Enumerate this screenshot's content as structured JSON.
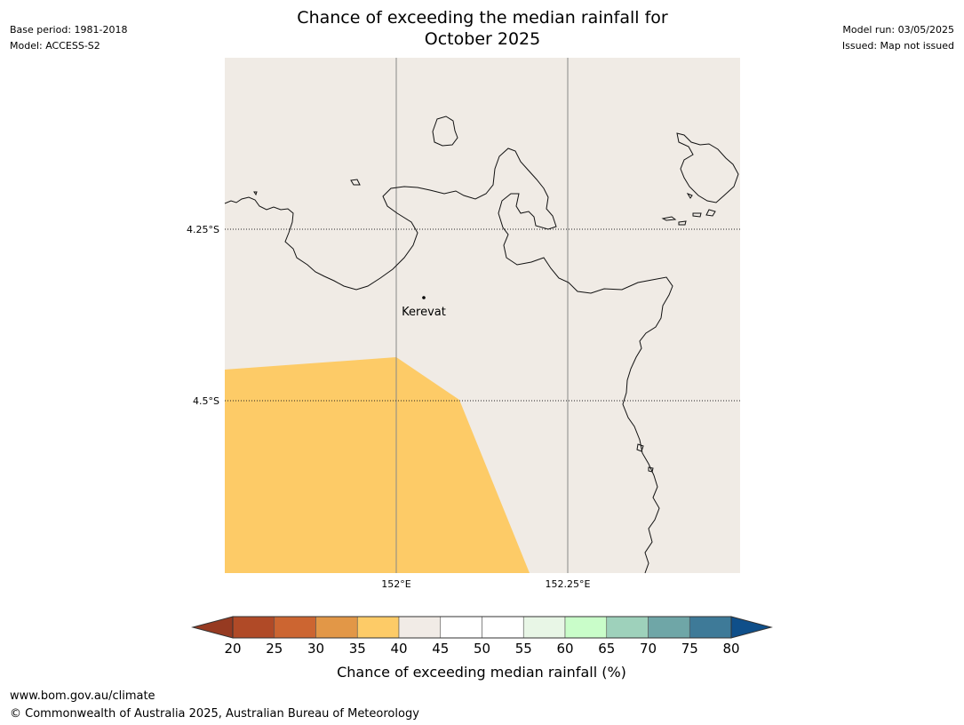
{
  "header": {
    "title_line1": "Chance of exceeding the median rainfall for",
    "title_line2": "October 2025",
    "base_period": "Base period: 1981-2018",
    "model": "Model: ACCESS-S2",
    "model_run": "Model run: 03/05/2025",
    "issued": "Issued: Map not issued"
  },
  "map": {
    "background_color": "#f0ebe5",
    "lat_labels": [
      "4.25°S",
      "4.5°S"
    ],
    "lon_labels": [
      "152°E",
      "152.25°E"
    ],
    "place": {
      "name": "Kerevat"
    },
    "region_35_40_color": "#fdcb67"
  },
  "colorbar": {
    "label": "Chance of exceeding median rainfall (%)",
    "ticks": [
      "20",
      "25",
      "30",
      "35",
      "40",
      "45",
      "50",
      "55",
      "60",
      "65",
      "70",
      "75",
      "80"
    ],
    "colors": [
      "#b04a27",
      "#cc6531",
      "#e29747",
      "#fdcb67",
      "#f1ebe6",
      "#ffffff",
      "#ffffff",
      "#e8f6e6",
      "#c9fdc9",
      "#9ed1bb",
      "#6fa6a7",
      "#3e7a98"
    ],
    "under_color": "#963a21",
    "over_color": "#0f4f8a"
  },
  "footer": {
    "url": "www.bom.gov.au/climate",
    "copyright": "© Commonwealth of Australia 2025, Australian Bureau of Meteorology"
  }
}
